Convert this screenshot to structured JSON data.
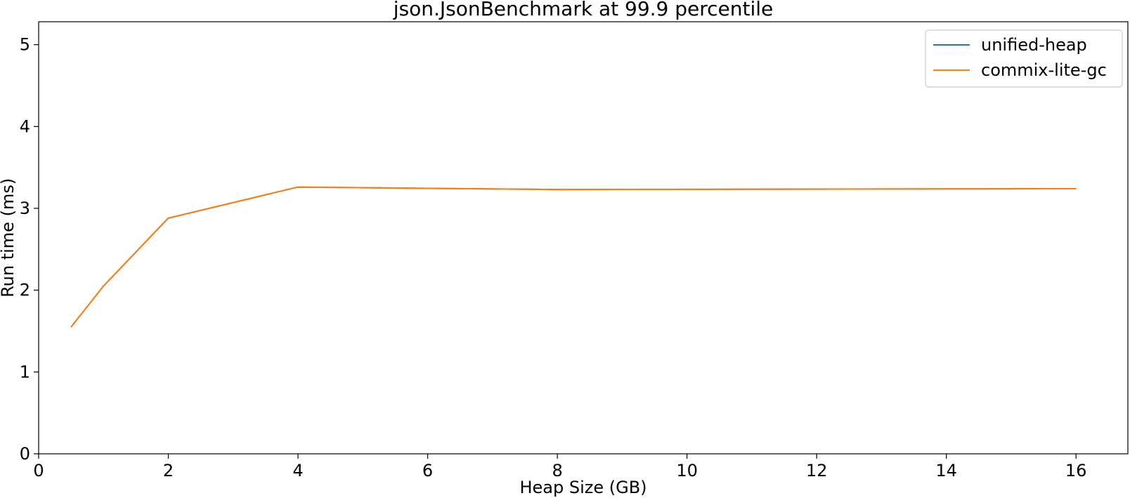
{
  "chart_data": {
    "type": "line",
    "title": "json.JsonBenchmark at 99.9 percentile",
    "xlabel": "Heap Size (GB)",
    "ylabel": "Run time (ms)",
    "xlim": [
      0,
      16.8
    ],
    "ylim": [
      0,
      5.28
    ],
    "xticks": [
      0,
      2,
      4,
      6,
      8,
      10,
      12,
      14,
      16
    ],
    "yticks": [
      0,
      1,
      2,
      3,
      4,
      5
    ],
    "grid": false,
    "legend_position": "top-right",
    "series": [
      {
        "name": "unified-heap",
        "color": "#1f77b4",
        "x": [
          0.5,
          1,
          2,
          4,
          8,
          16
        ],
        "y": [
          1.55,
          2.05,
          2.88,
          3.26,
          3.23,
          3.24
        ]
      },
      {
        "name": "commix-lite-gc",
        "color": "#ff7f0e",
        "x": [
          0.5,
          1,
          2,
          4,
          8,
          16
        ],
        "y": [
          1.55,
          2.05,
          2.88,
          3.26,
          3.23,
          3.24
        ]
      }
    ]
  }
}
